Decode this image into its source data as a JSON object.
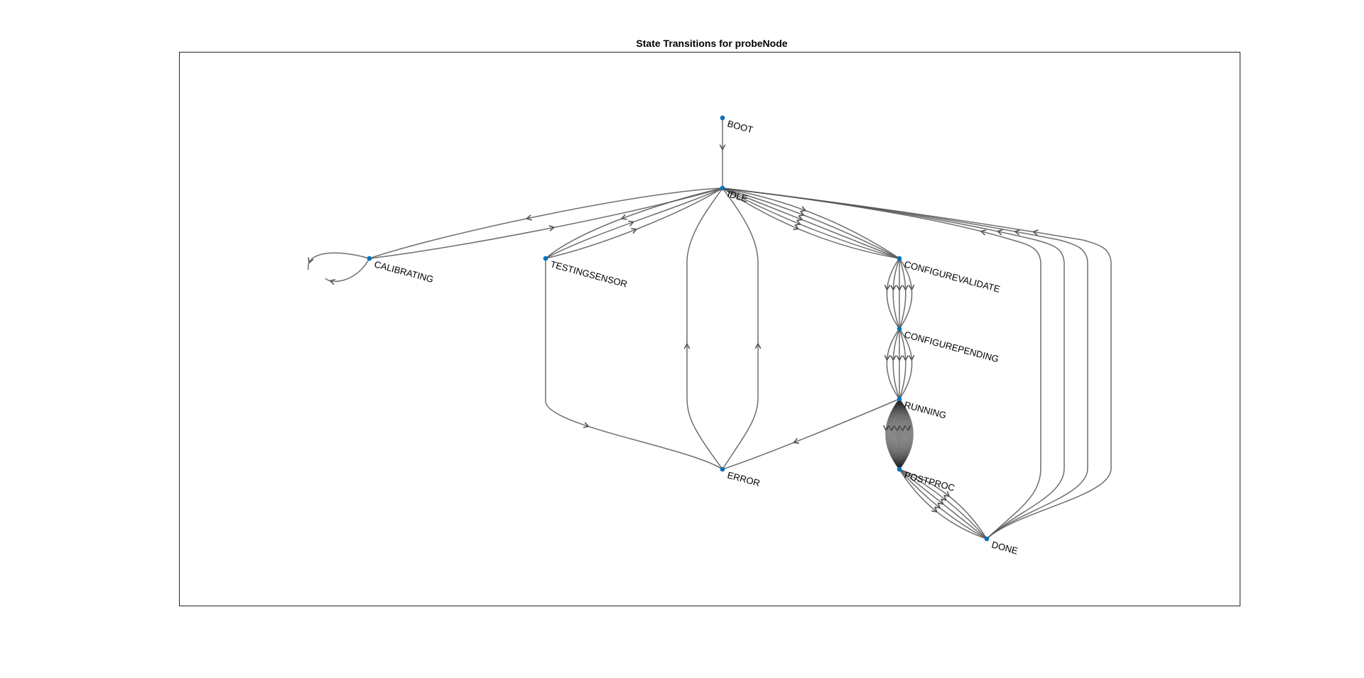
{
  "diagram": {
    "title": "State Transitions for probeNode",
    "node_color": "#0072BD",
    "edge_color": "#555555",
    "nodes": [
      {
        "id": "BOOT",
        "label": "BOOT"
      },
      {
        "id": "IDLE",
        "label": "IDLE"
      },
      {
        "id": "CALIBRATING",
        "label": "CALIBRATING"
      },
      {
        "id": "TESTINGSENSOR",
        "label": "TESTINGSENSOR"
      },
      {
        "id": "CONFIGUREVALIDATE",
        "label": "CONFIGUREVALIDATE"
      },
      {
        "id": "CONFIGUREPENDING",
        "label": "CONFIGUREPENDING"
      },
      {
        "id": "RUNNING",
        "label": "RUNNING"
      },
      {
        "id": "ERROR",
        "label": "ERROR"
      },
      {
        "id": "POSTPROC",
        "label": "POSTPROC"
      },
      {
        "id": "DONE",
        "label": "DONE"
      }
    ],
    "edges": [
      {
        "from": "BOOT",
        "to": "IDLE",
        "count": 1
      },
      {
        "from": "IDLE",
        "to": "CALIBRATING",
        "count": 1
      },
      {
        "from": "CALIBRATING",
        "to": "IDLE",
        "count": 1
      },
      {
        "from": "CALIBRATING",
        "to": "CALIBRATING",
        "count": 2
      },
      {
        "from": "IDLE",
        "to": "TESTINGSENSOR",
        "count": 1
      },
      {
        "from": "TESTINGSENSOR",
        "to": "IDLE",
        "count": 2
      },
      {
        "from": "TESTINGSENSOR",
        "to": "ERROR",
        "count": 1
      },
      {
        "from": "ERROR",
        "to": "IDLE",
        "count": 2
      },
      {
        "from": "IDLE",
        "to": "CONFIGUREVALIDATE",
        "count": 5
      },
      {
        "from": "CONFIGUREVALIDATE",
        "to": "CONFIGUREPENDING",
        "count": 5
      },
      {
        "from": "CONFIGUREPENDING",
        "to": "RUNNING",
        "count": 5
      },
      {
        "from": "RUNNING",
        "to": "POSTPROC",
        "count": 40
      },
      {
        "from": "RUNNING",
        "to": "ERROR",
        "count": 1
      },
      {
        "from": "POSTPROC",
        "to": "DONE",
        "count": 5
      },
      {
        "from": "DONE",
        "to": "IDLE",
        "count": 4
      }
    ]
  }
}
